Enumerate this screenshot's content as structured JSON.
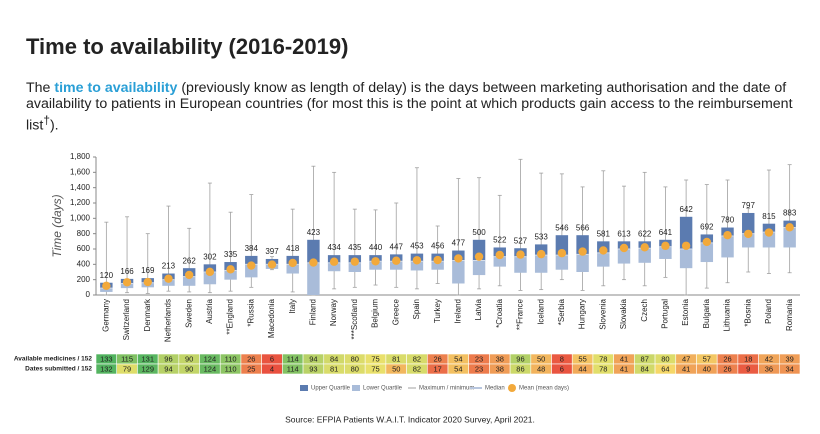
{
  "chart_data": {
    "type": "box",
    "title": "Time to availability (2016-2019)",
    "intro": [
      "The ",
      "time to availability",
      " (previously know as length of delay) is the days between marketing authorisation and the date of availability to patients in European countries (for most this is the point at which products gain access to the reimbursement list",
      "†",
      ")."
    ],
    "ylabel": "Time (days)",
    "categories": [
      "Germany",
      "Switzerland",
      "Denmark",
      "Netherlands",
      "Sweden",
      "Austria",
      "**England",
      "*Russia",
      "Macedonia",
      "Italy",
      "Finland",
      "Norway",
      "***Scotland",
      "Belgium",
      "Greece",
      "Spain",
      "Turkey",
      "Ireland",
      "Latvia",
      "*Croatia",
      "**France",
      "Iceland",
      "*Serbia",
      "Hungary",
      "Slovenia",
      "Slovakia",
      "Czech",
      "Portugal",
      "Estonia",
      "Bulgaria",
      "Lithuania",
      "*Bosnia",
      "Poland",
      "Romania"
    ],
    "min": [
      0,
      30,
      20,
      50,
      40,
      30,
      50,
      100,
      330,
      40,
      0,
      80,
      100,
      130,
      100,
      80,
      150,
      0,
      80,
      120,
      60,
      70,
      200,
      60,
      120,
      200,
      120,
      230,
      0,
      90,
      160,
      300,
      280,
      290
    ],
    "q1": [
      40,
      90,
      100,
      120,
      120,
      140,
      200,
      230,
      340,
      280,
      0,
      310,
      300,
      330,
      330,
      320,
      330,
      150,
      260,
      370,
      290,
      290,
      330,
      300,
      370,
      410,
      420,
      470,
      350,
      430,
      490,
      620,
      620,
      620
    ],
    "median": [
      90,
      150,
      160,
      200,
      240,
      300,
      320,
      400,
      400,
      400,
      420,
      420,
      420,
      440,
      440,
      440,
      440,
      450,
      450,
      500,
      500,
      520,
      520,
      530,
      550,
      600,
      610,
      630,
      600,
      680,
      770,
      800,
      820,
      880
    ],
    "q3": [
      160,
      210,
      220,
      280,
      350,
      400,
      430,
      510,
      470,
      510,
      720,
      520,
      520,
      520,
      530,
      540,
      540,
      580,
      720,
      620,
      610,
      660,
      780,
      780,
      700,
      700,
      700,
      720,
      1020,
      790,
      880,
      1070,
      930,
      970
    ],
    "max": [
      950,
      1020,
      800,
      1160,
      870,
      1460,
      1080,
      1310,
      500,
      1120,
      1680,
      1600,
      1120,
      1110,
      1200,
      1660,
      900,
      1520,
      1530,
      1300,
      1770,
      1590,
      1580,
      1410,
      1620,
      1420,
      1600,
      1410,
      1500,
      1440,
      1500,
      1130,
      1630,
      1700
    ],
    "mean": [
      120,
      166,
      169,
      213,
      262,
      302,
      335,
      384,
      397,
      418,
      423,
      434,
      435,
      440,
      447,
      453,
      456,
      477,
      500,
      522,
      527,
      533,
      546,
      566,
      581,
      613,
      622,
      641,
      642,
      692,
      780,
      797,
      815,
      883
    ],
    "ylim": [
      0,
      1800
    ],
    "yticks": [
      0,
      200,
      400,
      600,
      800,
      {
        "value": 1000,
        "label": "1,000"
      },
      {
        "value": 1200,
        "label": "1,200"
      },
      {
        "value": 1400,
        "label": "1,400"
      },
      {
        "value": 1600,
        "label": "1,600"
      },
      {
        "value": 1800,
        "label": "1,800"
      }
    ],
    "grid": false,
    "colors": {
      "upper": "#5b7bb0",
      "lower": "#a9bcd9",
      "whisker": "#a0a0a0",
      "median": "#d5deec",
      "mean": "#f2a93b"
    },
    "legend": [
      "Upper Quartile",
      "Lower Quartile",
      "Maximum / minimum",
      "Median",
      "Mean (mean days)"
    ],
    "table": {
      "row_labels": [
        "Available medicines / 152",
        "Dates submitted / 152"
      ],
      "rows": [
        [
          133,
          115,
          131,
          96,
          90,
          124,
          110,
          26,
          6,
          114,
          94,
          84,
          80,
          75,
          81,
          82,
          26,
          54,
          23,
          38,
          96,
          50,
          8,
          55,
          78,
          41,
          87,
          80,
          47,
          57,
          26,
          18,
          42,
          39
        ],
        [
          132,
          79,
          129,
          94,
          90,
          124,
          110,
          25,
          4,
          114,
          93,
          81,
          80,
          75,
          50,
          82,
          17,
          54,
          23,
          38,
          86,
          48,
          6,
          44,
          78,
          41,
          84,
          64,
          41,
          40,
          26,
          9,
          36,
          34
        ]
      ],
      "color_scale": [
        "#e8473c",
        "#f6e46c",
        "#3fae5e"
      ]
    },
    "source": "Source: EFPIA Patients W.A.I.T. Indicator 2020 Survey, April 2021."
  }
}
